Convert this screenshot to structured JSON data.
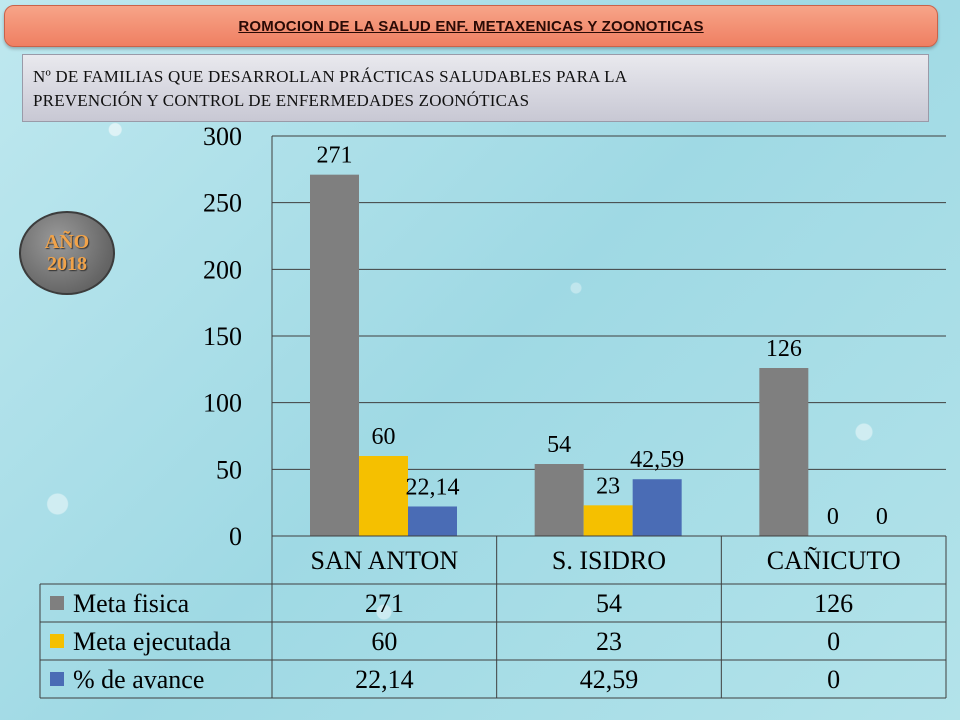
{
  "header": {
    "title": "ROMOCION DE LA SALUD  ENF. METAXENICAS Y ZOONOTICAS",
    "subtitle_line1": "Nº  DE FAMILIAS QUE DESARROLLAN PRÁCTICAS SALUDABLES PARA LA",
    "subtitle_line2": "PREVENCIÓN Y CONTROL DE ENFERMEDADES ZOONÓTICAS"
  },
  "badge": {
    "line1": "AÑO",
    "line2": "2018"
  },
  "chart_data": {
    "type": "bar",
    "categories": [
      "SAN ANTON",
      "S. ISIDRO",
      "CAÑICUTO"
    ],
    "series": [
      {
        "name": "Meta fisica",
        "values": [
          271,
          54,
          126
        ],
        "labels": [
          "271",
          "54",
          "126"
        ],
        "color": "#7f7f7f"
      },
      {
        "name": "Meta ejecutada",
        "values": [
          60,
          23,
          0
        ],
        "labels": [
          "60",
          "23",
          "0"
        ],
        "color": "#f5c000"
      },
      {
        "name": "% de avance",
        "values": [
          22.14,
          42.59,
          0
        ],
        "labels": [
          "22,14",
          "42,59",
          "0"
        ],
        "color": "#4a6cb5"
      }
    ],
    "yticks": [
      "0",
      "50",
      "100",
      "150",
      "200",
      "250",
      "300"
    ],
    "ylim": [
      0,
      300
    ],
    "grid": true,
    "legend": "data-table-below"
  }
}
